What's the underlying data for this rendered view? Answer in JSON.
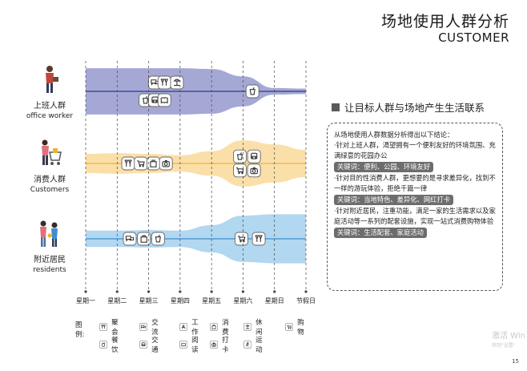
{
  "title": {
    "cn": "场地使用人群分析",
    "en": "CUSTOMER"
  },
  "personas": [
    {
      "cn": "上班人群",
      "en": "office worker"
    },
    {
      "cn": "消费人群",
      "en": "Customers"
    },
    {
      "cn": "附近居民",
      "en": "residents"
    }
  ],
  "days": [
    "星期一",
    "星期二",
    "星期三",
    "星期四",
    "星期五",
    "星期六",
    "星期日",
    "节假日"
  ],
  "section_title": "让目标人群与场地产生生活联系",
  "notes": {
    "intro": "从场地使用人群数据分析得出以下结论：",
    "p1": "·针对上班人群，渴望拥有一个便利友好的环境氛围、充满绿意的花园办公",
    "k1": "关键词：便利、公园、环境友好",
    "p2": "·针对目的性消费人群，更想要的是寻求差异化，找到不一样的游玩体验，拒绝千篇一律",
    "k2": "关键词：当地特色、差异化、网红打卡",
    "p3": "·针对附近居民，注重功能，满足一家的生活需求以及家庭活动等一系列的配套设施，实现一站式消费购物体验",
    "k3": "关键词：生活配套、家庭活动"
  },
  "legend": {
    "label": "图例:",
    "items": [
      {
        "name": "聚会",
        "icon": "party-icon"
      },
      {
        "name": "交流",
        "icon": "chat-icon"
      },
      {
        "name": "工作",
        "icon": "work-icon"
      },
      {
        "name": "消费",
        "icon": "shopping-bag-icon"
      },
      {
        "name": "休闲",
        "icon": "leisure-icon"
      },
      {
        "name": "购物",
        "icon": "cart-icon"
      },
      {
        "name": "餐饮",
        "icon": "drink-icon"
      },
      {
        "name": "交通",
        "icon": "bus-icon"
      },
      {
        "name": "阅读",
        "icon": "reading-icon"
      },
      {
        "name": "打卡",
        "icon": "camera-icon"
      },
      {
        "name": "运动",
        "icon": "sport-icon"
      }
    ]
  },
  "chart_data": {
    "type": "area",
    "x": [
      "星期一",
      "星期二",
      "星期三",
      "星期四",
      "星期五",
      "星期六",
      "星期日",
      "节假日"
    ],
    "series": [
      {
        "name": "上班人群",
        "color": "#9b9fcf",
        "line_color": "#2d3a8c",
        "values": [
          0.85,
          0.85,
          0.85,
          0.85,
          0.82,
          0.55,
          0.12,
          0.1
        ],
        "icons": [
          [
            "chat-icon",
            2.2,
            0.5
          ],
          [
            "party-icon",
            2.5,
            0.5
          ],
          [
            "leisure-icon",
            2.9,
            0.5
          ],
          [
            "drink-icon",
            1.9,
            -0.5
          ],
          [
            "bus-icon",
            2.2,
            -0.5
          ],
          [
            "reading-icon",
            2.5,
            -0.5
          ],
          [
            "drink-icon",
            5.3,
            0
          ]
        ]
      },
      {
        "name": "消费人群",
        "color": "#fbdca0",
        "line_color": "#e8b730",
        "values": [
          0.35,
          0.38,
          0.35,
          0.3,
          0.45,
          0.85,
          0.7,
          0.5
        ],
        "icons": [
          [
            "party-icon",
            1.35,
            0
          ],
          [
            "cart-icon",
            1.75,
            0
          ],
          [
            "shopping-bag-icon",
            2.15,
            0
          ],
          [
            "camera-icon",
            2.55,
            0
          ],
          [
            "drink-icon",
            4.9,
            0.4
          ],
          [
            "bus-icon",
            5.35,
            0.4
          ],
          [
            "cart-icon",
            4.9,
            -0.4
          ],
          [
            "camera-icon",
            5.35,
            -0.4
          ]
        ]
      },
      {
        "name": "附近居民",
        "color": "#a9d3ef",
        "line_color": "#3f8fd0",
        "values": [
          0.3,
          0.3,
          0.32,
          0.3,
          0.5,
          0.85,
          0.9,
          0.9
        ],
        "icons": [
          [
            "chat-icon",
            1.4,
            0
          ],
          [
            "shopping-bag-icon",
            1.85,
            0
          ],
          [
            "drink-icon",
            2.3,
            0
          ],
          [
            "cart-icon",
            4.95,
            0
          ],
          [
            "party-icon",
            5.5,
            0
          ]
        ]
      }
    ]
  }
}
